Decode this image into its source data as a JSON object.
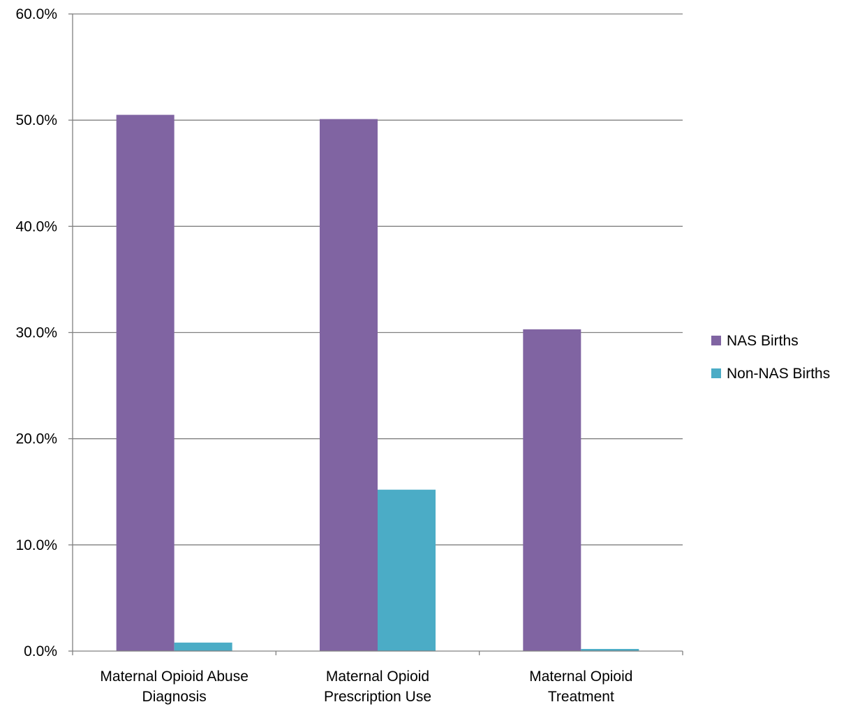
{
  "chart_data": {
    "type": "bar",
    "title": "",
    "xlabel": "",
    "ylabel": "",
    "categories": [
      [
        "Maternal Opioid Abuse",
        "Diagnosis"
      ],
      [
        "Maternal Opioid",
        "Prescription Use"
      ],
      [
        "Maternal Opioid",
        "Treatment"
      ]
    ],
    "series": [
      {
        "name": "NAS Births",
        "values": [
          50.5,
          50.1,
          30.3
        ],
        "color": "#8064A2"
      },
      {
        "name": "Non-NAS Births",
        "values": [
          0.8,
          15.2,
          0.2
        ],
        "color": "#4BACC6"
      }
    ],
    "ylim": [
      0,
      60
    ],
    "yticks": [
      0,
      10,
      20,
      30,
      40,
      50,
      60
    ],
    "ytick_labels": [
      "0.0%",
      "10.0%",
      "20.0%",
      "30.0%",
      "40.0%",
      "50.0%",
      "60.0%"
    ],
    "grid": true,
    "legend_position": "right"
  }
}
